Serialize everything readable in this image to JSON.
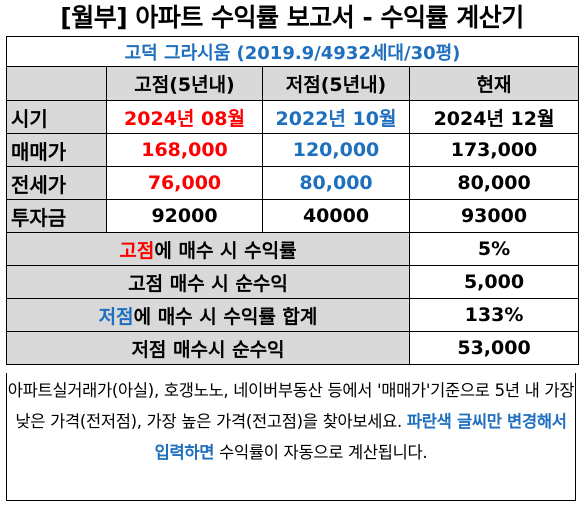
{
  "title": "[월부] 아파트 수익률 보고서 - 수익률 계산기",
  "subtitle": "고덕 그라시움 (2019.9/4932세대/30평)",
  "columns": [
    "고점(5년내)",
    "저점(5년내)",
    "현재"
  ],
  "rows": [
    {
      "label": "시기",
      "values": [
        "2024년 08월",
        "2022년 10월",
        "2024년 12월"
      ]
    },
    {
      "label": "매매가",
      "values": [
        "168,000",
        "120,000",
        "173,000"
      ]
    },
    {
      "label": "전세가",
      "values": [
        "76,000",
        "80,000",
        "80,000"
      ]
    },
    {
      "label": "투자금",
      "values": [
        "92000",
        "40000",
        "93000"
      ]
    }
  ],
  "summary": [
    {
      "label_prefix": "고점",
      "label_rest": "에 매수 시 수익률",
      "value": "5%"
    },
    {
      "label_prefix": "",
      "label_rest": "고점 매수 시 순수익",
      "value": "5,000"
    },
    {
      "label_prefix": "저점",
      "label_rest": "에 매수 시 수익률 합계",
      "value": "133%"
    },
    {
      "label_prefix": "",
      "label_rest": "저점 매수시 순수익",
      "value": "53,000"
    }
  ],
  "note": {
    "part1": "아파트실거래가(아실), 호갱노노, 네이버부동산 등에서 '매매가'기준으로 5년 내 가장 낮은 가격(전저점), 가장 높은 가격(전고점)을 찾아보세요.",
    "highlight": "파란색 글씨만 변경해서 입력하면",
    "part2": "수익률이 자동으로 계산됩니다."
  },
  "colors": {
    "red": "#ff0000",
    "blue": "#1f6fbf",
    "header_gray": "#d9d9d9"
  }
}
